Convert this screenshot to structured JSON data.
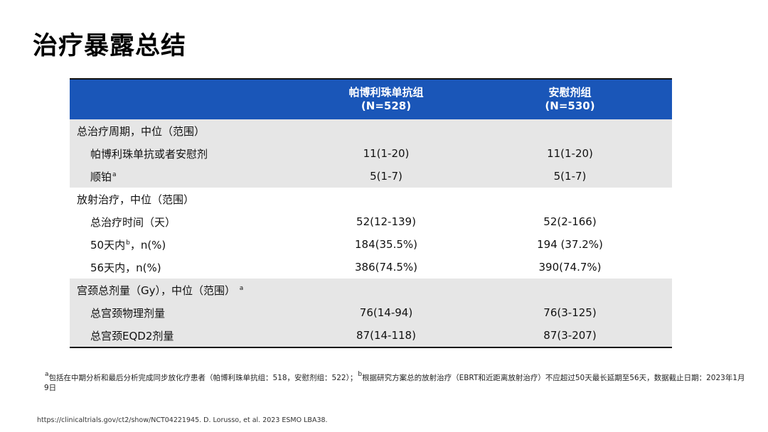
{
  "title": "治疗暴露总结",
  "table": {
    "columns": [
      {
        "name": "帕博利珠单抗组",
        "n": "(N=528)"
      },
      {
        "name": "安慰剂组",
        "n": "(N=530)"
      }
    ],
    "groups": [
      {
        "label": "总治疗周期，中位（范围）",
        "rows": [
          {
            "label": "帕博利珠单抗或者安慰剂",
            "sup": "",
            "v1": "11(1-20)",
            "v2": "11(1-20)"
          },
          {
            "label": "顺铂",
            "sup": "a",
            "v1": "5(1-7)",
            "v2": "5(1-7)"
          }
        ]
      },
      {
        "label": "放射治疗，中位（范围）",
        "rows": [
          {
            "label": "总治疗时间（天）",
            "sup": "",
            "v1": "52(12-139)",
            "v2": "52(2-166)"
          },
          {
            "label": "50天内",
            "sup": "b",
            "suffix": "，n(%)",
            "v1": "184(35.5%)",
            "v2": "194 (37.2%)"
          },
          {
            "label": "56天内，n(%)",
            "sup": "",
            "v1": "386(74.5%)",
            "v2": "390(74.7%)"
          }
        ]
      },
      {
        "label": "宫颈总剂量（Gy），中位（范围）",
        "sup": "a",
        "rows": [
          {
            "label": "总宫颈物理剂量",
            "sup": "",
            "v1": "76(14-94)",
            "v2": "76(3-125)"
          },
          {
            "label": "总宫颈EQD2剂量",
            "sup": "",
            "v1": "87(14-118)",
            "v2": "87(3-207)"
          }
        ]
      }
    ]
  },
  "footnote": {
    "a_mark": "a",
    "a_text": "包括在中期分析和最后分析完成同步放化疗患者（帕博利珠单抗组：518，安慰剂组：522）；",
    "b_mark": "b",
    "b_text": "根据研究方案总的放射治疗（EBRT和近距离放射治疗）不应超过50天最长延期至56天，数据截止日期：2023年1月9日"
  },
  "reference": "https://clinicaltrials.gov/ct2/show/NCT04221945. D. Lorusso, et al. 2023  ESMO LBA38."
}
